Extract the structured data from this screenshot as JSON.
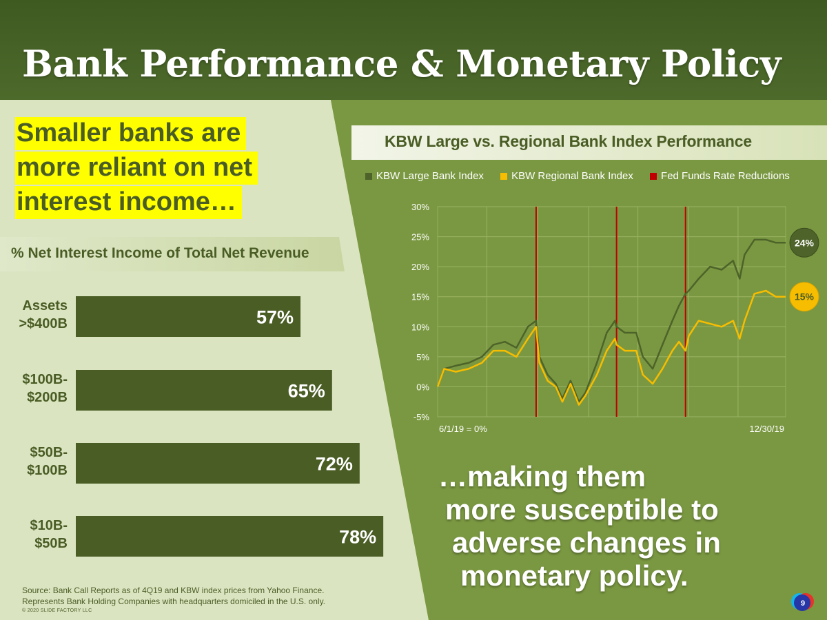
{
  "title": "Bank Performance & Monetary Policy",
  "left": {
    "headline_lines": [
      "Smaller banks are",
      "more reliant on net",
      "interest income…"
    ],
    "subtitle": "% Net Interest Income of Total Net Revenue",
    "source_lines": [
      "Source: Bank Call Reports as of 4Q19 and KBW index prices from Yahoo Finance.",
      "Represents Bank Holding Companies with headquarters domiciled in the U.S. only."
    ],
    "copyright": "© 2020 SLIDE FACTORY LLC"
  },
  "right": {
    "callout_lines": [
      "…making them",
      "more susceptible to",
      "adverse changes in",
      "monetary policy."
    ]
  },
  "page_number": "9",
  "colors": {
    "header": "#46621f",
    "left_bg": "#dbe4c1",
    "right_bg": "#7a9841",
    "dark_green": "#4a5d25",
    "highlight": "#ffff00",
    "large_index": "#4d6329",
    "regional_index": "#f7bd00",
    "fed_cut": "#c00000"
  },
  "chart_data": [
    {
      "type": "bar",
      "orientation": "horizontal",
      "title": "% Net Interest Income of Total Net Revenue",
      "categories": [
        [
          "Assets",
          ">$400B"
        ],
        [
          "$100B-",
          "$200B"
        ],
        [
          "$50B-",
          "$100B"
        ],
        [
          "$10B-",
          "$50B"
        ]
      ],
      "values": [
        57,
        65,
        72,
        78
      ],
      "value_labels": [
        "57%",
        "65%",
        "72%",
        "78%"
      ]
    },
    {
      "type": "line",
      "title": "KBW Large vs. Regional Bank Index Performance",
      "x_start_label": "6/1/19 = 0%",
      "x_end_label": "12/30/19",
      "x_range": [
        "2019-06-01",
        "2019-12-30"
      ],
      "ylim": [
        -5,
        30
      ],
      "yticks": [
        -5,
        0,
        5,
        10,
        15,
        20,
        25,
        30
      ],
      "ytick_labels": [
        "-5%",
        "0%",
        "5%",
        "10%",
        "15%",
        "20%",
        "25%",
        "30%"
      ],
      "grid": true,
      "legend_position": "top",
      "series": [
        {
          "name": "KBW Large Bank Index",
          "color": "#4d6329",
          "end_label": "24%",
          "points": [
            [
              "2019-06-01",
              0
            ],
            [
              "2019-06-05",
              3
            ],
            [
              "2019-06-12",
              3.5
            ],
            [
              "2019-06-20",
              4
            ],
            [
              "2019-06-28",
              5
            ],
            [
              "2019-07-05",
              7
            ],
            [
              "2019-07-12",
              7.5
            ],
            [
              "2019-07-19",
              6.5
            ],
            [
              "2019-07-26",
              10
            ],
            [
              "2019-07-31",
              11
            ],
            [
              "2019-08-02",
              5
            ],
            [
              "2019-08-07",
              2
            ],
            [
              "2019-08-12",
              0.5
            ],
            [
              "2019-08-16",
              -2
            ],
            [
              "2019-08-21",
              1
            ],
            [
              "2019-08-26",
              -2.5
            ],
            [
              "2019-08-30",
              -1
            ],
            [
              "2019-09-06",
              4
            ],
            [
              "2019-09-12",
              9
            ],
            [
              "2019-09-17",
              11
            ],
            [
              "2019-09-18",
              10
            ],
            [
              "2019-09-23",
              9
            ],
            [
              "2019-09-30",
              9
            ],
            [
              "2019-10-04",
              5
            ],
            [
              "2019-10-10",
              3
            ],
            [
              "2019-10-16",
              7
            ],
            [
              "2019-10-22",
              11
            ],
            [
              "2019-10-26",
              13.5
            ],
            [
              "2019-10-30",
              15.5
            ],
            [
              "2019-11-01",
              16
            ],
            [
              "2019-11-07",
              18
            ],
            [
              "2019-11-14",
              20
            ],
            [
              "2019-11-21",
              19.5
            ],
            [
              "2019-11-28",
              21
            ],
            [
              "2019-12-02",
              18
            ],
            [
              "2019-12-05",
              22
            ],
            [
              "2019-12-11",
              24.5
            ],
            [
              "2019-12-18",
              24.5
            ],
            [
              "2019-12-24",
              24
            ],
            [
              "2019-12-30",
              24
            ]
          ]
        },
        {
          "name": "KBW Regional Bank Index",
          "color": "#f7bd00",
          "end_label": "15%",
          "points": [
            [
              "2019-06-01",
              0
            ],
            [
              "2019-06-05",
              3
            ],
            [
              "2019-06-12",
              2.5
            ],
            [
              "2019-06-20",
              3
            ],
            [
              "2019-06-28",
              4
            ],
            [
              "2019-07-05",
              6
            ],
            [
              "2019-07-12",
              6
            ],
            [
              "2019-07-19",
              5
            ],
            [
              "2019-07-26",
              8
            ],
            [
              "2019-07-31",
              10
            ],
            [
              "2019-08-02",
              4
            ],
            [
              "2019-08-07",
              1
            ],
            [
              "2019-08-12",
              0
            ],
            [
              "2019-08-16",
              -2.5
            ],
            [
              "2019-08-21",
              0.5
            ],
            [
              "2019-08-26",
              -3
            ],
            [
              "2019-08-30",
              -1.5
            ],
            [
              "2019-09-06",
              2
            ],
            [
              "2019-09-12",
              6
            ],
            [
              "2019-09-17",
              8
            ],
            [
              "2019-09-18",
              7
            ],
            [
              "2019-09-23",
              6
            ],
            [
              "2019-09-30",
              6
            ],
            [
              "2019-10-04",
              2
            ],
            [
              "2019-10-10",
              0.5
            ],
            [
              "2019-10-16",
              3
            ],
            [
              "2019-10-22",
              6
            ],
            [
              "2019-10-26",
              7.5
            ],
            [
              "2019-10-30",
              6
            ],
            [
              "2019-11-01",
              8.5
            ],
            [
              "2019-11-07",
              11
            ],
            [
              "2019-11-14",
              10.5
            ],
            [
              "2019-11-21",
              10
            ],
            [
              "2019-11-28",
              11
            ],
            [
              "2019-12-02",
              8
            ],
            [
              "2019-12-05",
              11
            ],
            [
              "2019-12-11",
              15.5
            ],
            [
              "2019-12-18",
              16
            ],
            [
              "2019-12-24",
              15
            ],
            [
              "2019-12-30",
              15
            ]
          ]
        }
      ],
      "reference_lines": {
        "name": "Fed Funds Rate Reductions",
        "color": "#c00000",
        "dates": [
          "2019-07-31",
          "2019-09-18",
          "2019-10-30"
        ]
      }
    }
  ]
}
